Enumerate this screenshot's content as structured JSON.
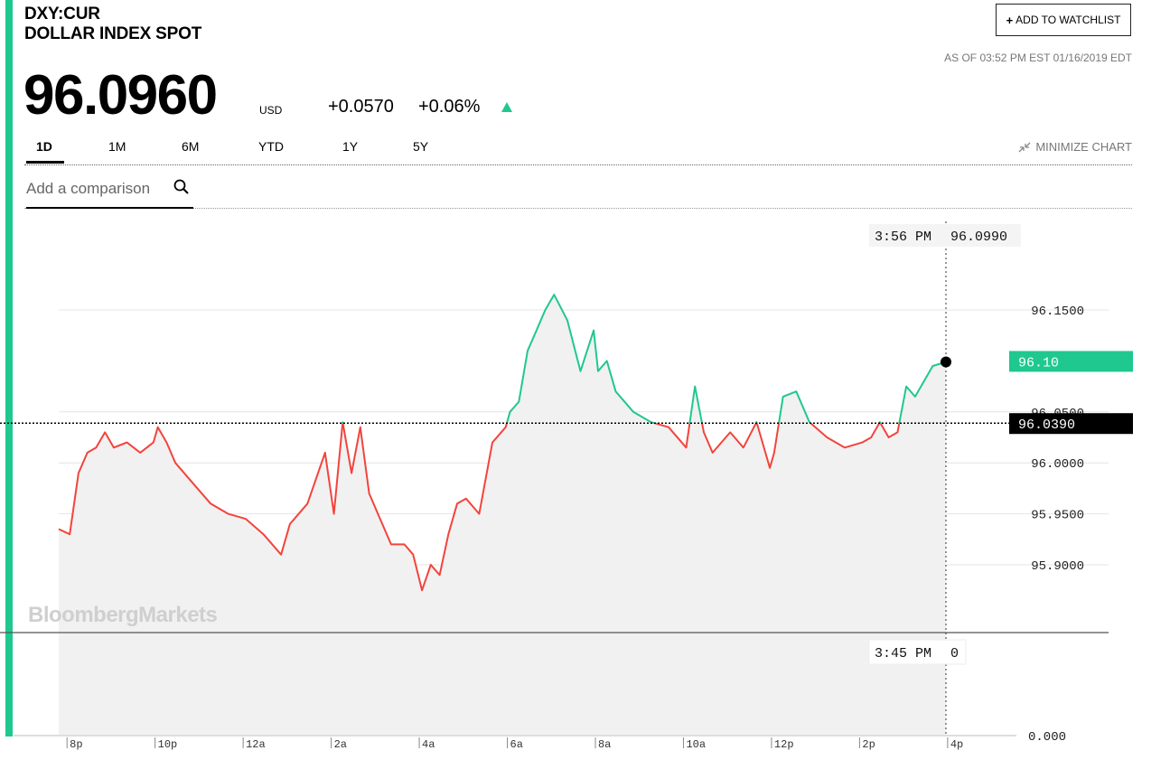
{
  "header": {
    "ticker": "DXY:CUR",
    "name": "DOLLAR INDEX SPOT",
    "price": "96.0960",
    "currency": "USD",
    "change": "+0.0570",
    "change_pct": "+0.06%",
    "as_of": "AS OF 03:52 PM EST 01/16/2019 EDT",
    "watchlist_label": "ADD TO WATCHLIST"
  },
  "tabs": [
    {
      "label": "1D",
      "active": true
    },
    {
      "label": "1M",
      "active": false
    },
    {
      "label": "6M",
      "active": false
    },
    {
      "label": "YTD",
      "active": false
    },
    {
      "label": "1Y",
      "active": false
    },
    {
      "label": "5Y",
      "active": false
    }
  ],
  "minimize_label": "MINIMIZE CHART",
  "search": {
    "placeholder": "Add a comparison"
  },
  "watermark": "BloombergMarkets",
  "colors": {
    "accent": "#1fc88e",
    "up": "#1fc88e",
    "down": "#f2443c",
    "base_label": "#000000"
  },
  "tooltip": {
    "time": "3:56 PM",
    "value": "96.0990"
  },
  "volume_tooltip": {
    "time": "3:45 PM",
    "value": "0"
  },
  "labels": {
    "current": "96.10",
    "previous_close": "96.0390",
    "volume_zero": "0.000"
  },
  "chart_data": {
    "type": "line",
    "series_name": "",
    "previous_close": 96.039,
    "last": 96.099,
    "y_ticks": [
      "96.1500",
      "96.0500",
      "96.0000",
      "95.9500",
      "95.9000"
    ],
    "y_tick_values": [
      96.15,
      96.05,
      96.0,
      95.95,
      95.9
    ],
    "ylim": [
      95.87,
      96.17
    ],
    "x_ticks": [
      "8p",
      "10p",
      "12a",
      "2a",
      "4a",
      "6a",
      "8a",
      "10a",
      "12p",
      "2p",
      "4p"
    ],
    "x_tick_hours": [
      20,
      22,
      24,
      26,
      28,
      30,
      32,
      34,
      36,
      38,
      40
    ],
    "x": [
      19.75,
      20.0,
      20.2,
      20.4,
      20.6,
      20.8,
      21.0,
      21.3,
      21.6,
      21.9,
      22.0,
      22.2,
      22.4,
      22.8,
      23.2,
      23.6,
      24.0,
      24.4,
      24.8,
      25.0,
      25.4,
      25.8,
      26.0,
      26.2,
      26.4,
      26.6,
      26.8,
      27.0,
      27.3,
      27.6,
      27.8,
      28.0,
      28.2,
      28.4,
      28.6,
      28.8,
      29.0,
      29.3,
      29.6,
      29.9,
      30.0,
      30.2,
      30.4,
      30.6,
      30.8,
      31.0,
      31.3,
      31.6,
      31.9,
      32.0,
      32.2,
      32.4,
      32.8,
      33.2,
      33.6,
      34.0,
      34.2,
      34.4,
      34.6,
      35.0,
      35.3,
      35.6,
      35.9,
      36.0,
      36.2,
      36.5,
      36.8,
      37.2,
      37.6,
      38.0,
      38.2,
      38.4,
      38.6,
      38.8,
      39.0,
      39.2,
      39.4,
      39.6,
      39.9
    ],
    "y": [
      95.935,
      95.93,
      95.99,
      96.01,
      96.015,
      96.03,
      96.015,
      96.02,
      96.01,
      96.02,
      96.035,
      96.02,
      96.0,
      95.98,
      95.96,
      95.95,
      95.945,
      95.93,
      95.91,
      95.94,
      95.96,
      96.01,
      95.95,
      96.04,
      95.99,
      96.035,
      95.97,
      95.95,
      95.92,
      95.92,
      95.91,
      95.875,
      95.9,
      95.89,
      95.93,
      95.96,
      95.965,
      95.95,
      96.02,
      96.035,
      96.05,
      96.06,
      96.11,
      96.13,
      96.15,
      96.165,
      96.14,
      96.09,
      96.13,
      96.09,
      96.1,
      96.07,
      96.05,
      96.04,
      96.035,
      96.015,
      96.075,
      96.03,
      96.01,
      96.03,
      96.015,
      96.04,
      95.995,
      96.01,
      96.065,
      96.07,
      96.04,
      96.025,
      96.015,
      96.02,
      96.025,
      96.04,
      96.025,
      96.03,
      96.075,
      96.065,
      96.08,
      96.095,
      96.099
    ],
    "ymin_visible": 95.87,
    "ymax_visible": 96.17
  }
}
